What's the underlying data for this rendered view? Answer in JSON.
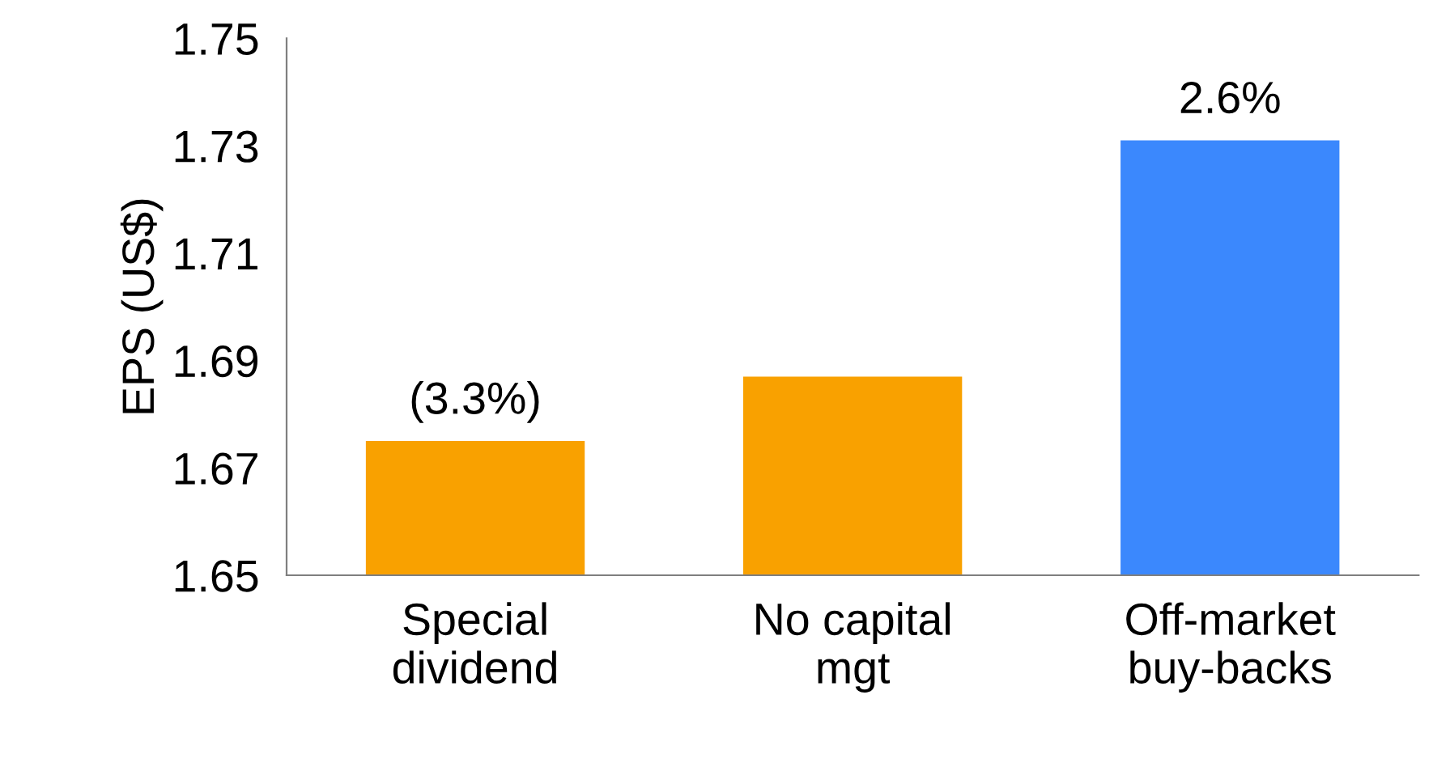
{
  "chart_data": {
    "type": "bar",
    "ylabel": "EPS (US$)",
    "categories": [
      "Special\ndividend",
      "No capital\nmgt",
      "Off-market\nbuy-backs"
    ],
    "values": [
      1.675,
      1.687,
      1.731
    ],
    "colors": [
      "#f9a100",
      "#f9a100",
      "#3b88fd"
    ],
    "annotations": [
      {
        "text": "(3.3%)",
        "x": "Special\ndividend",
        "y": 1.675
      },
      {
        "text": "2.6%",
        "x": "Off-market\nbuy-backs",
        "y": 1.731
      }
    ],
    "ylim": [
      1.65,
      1.75
    ],
    "yticks": [
      1.65,
      1.67,
      1.69,
      1.71,
      1.73,
      1.75
    ],
    "grid": false
  }
}
